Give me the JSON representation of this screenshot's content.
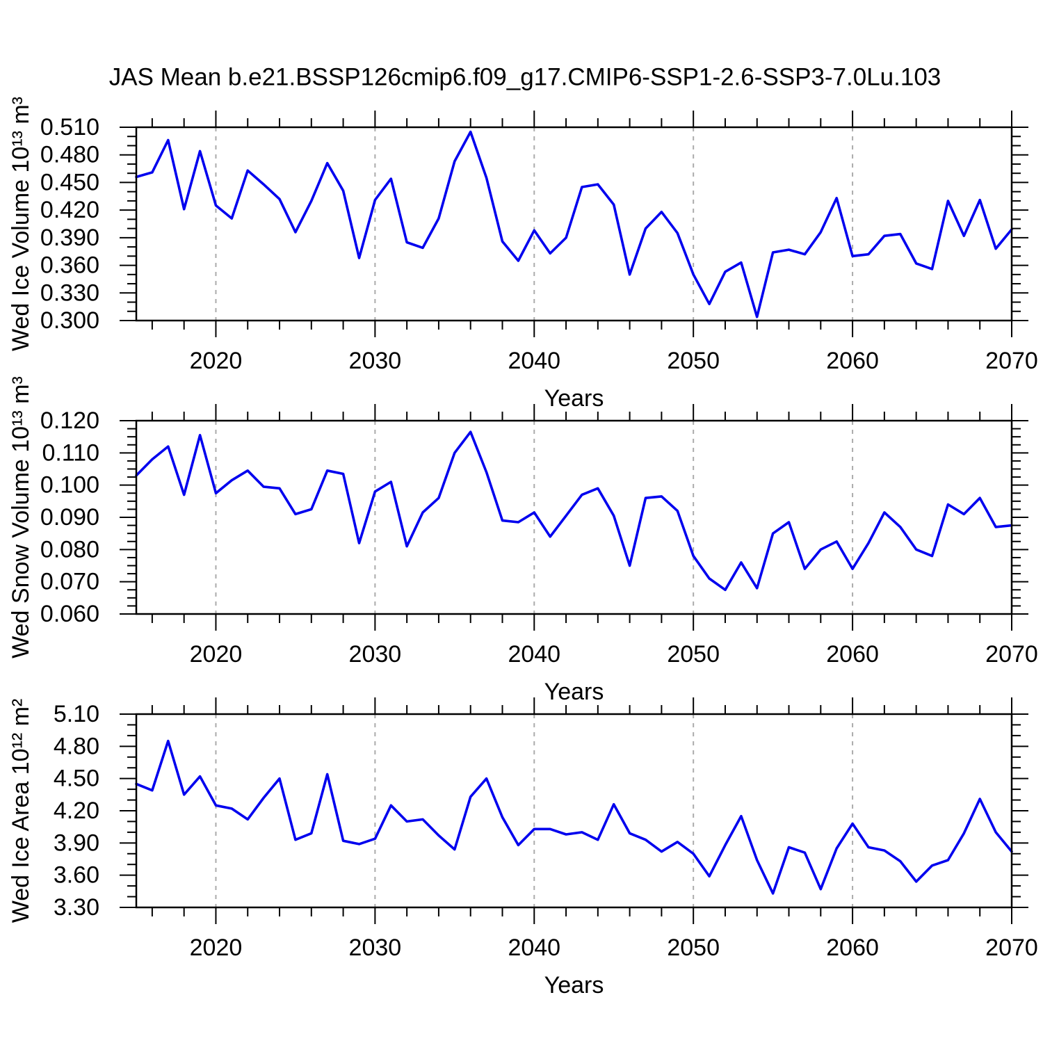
{
  "title": "JAS Mean b.e21.BSSP126cmip6.f09_g17.CMIP6-SSP1-2.6-SSP3-7.0Lu.103",
  "colors": {
    "line": "#0000EE",
    "grid": "#ABABAB",
    "axis": "#000000",
    "text": "#000000",
    "background": "#FFFFFF"
  },
  "chart_data": {
    "type": "line",
    "x_label": "Years",
    "xlim": [
      2015,
      2070
    ],
    "x_ticks": [
      2020,
      2030,
      2040,
      2050,
      2060,
      2070
    ],
    "x_minor_step": 2,
    "x_gridlines": [
      2020,
      2030,
      2040,
      2050,
      2060
    ],
    "grid_style": "dashed",
    "legend": "none",
    "years": [
      2015,
      2016,
      2017,
      2018,
      2019,
      2020,
      2021,
      2022,
      2023,
      2024,
      2025,
      2026,
      2027,
      2028,
      2029,
      2030,
      2031,
      2032,
      2033,
      2034,
      2035,
      2036,
      2037,
      2038,
      2039,
      2040,
      2041,
      2042,
      2043,
      2044,
      2045,
      2046,
      2047,
      2048,
      2049,
      2050,
      2051,
      2052,
      2053,
      2054,
      2055,
      2056,
      2057,
      2058,
      2059,
      2060,
      2061,
      2062,
      2063,
      2064,
      2065,
      2066,
      2067,
      2068,
      2069,
      2070
    ],
    "panels": [
      {
        "name": "wed-ice-volume",
        "ylabel": "Wed Ice Volume 10¹³ m³",
        "ylim": [
          0.3,
          0.51
        ],
        "ytick_step": 0.03,
        "yminor_step": 0.01,
        "ylabel_decimals": 3,
        "values": [
          0.456,
          0.461,
          0.496,
          0.421,
          0.484,
          0.425,
          0.411,
          0.463,
          0.448,
          0.432,
          0.396,
          0.43,
          0.471,
          0.441,
          0.368,
          0.431,
          0.454,
          0.385,
          0.379,
          0.411,
          0.473,
          0.505,
          0.455,
          0.386,
          0.365,
          0.398,
          0.373,
          0.39,
          0.445,
          0.448,
          0.426,
          0.35,
          0.4,
          0.418,
          0.395,
          0.35,
          0.318,
          0.353,
          0.363,
          0.304,
          0.374,
          0.377,
          0.372,
          0.396,
          0.433,
          0.37,
          0.372,
          0.392,
          0.394,
          0.362,
          0.356,
          0.43,
          0.392,
          0.431,
          0.378,
          0.399
        ]
      },
      {
        "name": "wed-snow-volume",
        "ylabel": "Wed Snow Volume 10¹³ m³",
        "ylim": [
          0.06,
          0.12
        ],
        "ytick_step": 0.01,
        "yminor_step": 0.0025,
        "ylabel_decimals": 3,
        "values": [
          0.103,
          0.108,
          0.112,
          0.097,
          0.1155,
          0.0975,
          0.1015,
          0.1045,
          0.0995,
          0.099,
          0.091,
          0.0925,
          0.1045,
          0.1035,
          0.082,
          0.098,
          0.101,
          0.081,
          0.0915,
          0.096,
          0.11,
          0.1165,
          0.104,
          0.089,
          0.0885,
          0.0915,
          0.084,
          0.0905,
          0.097,
          0.099,
          0.0905,
          0.075,
          0.096,
          0.0965,
          0.092,
          0.078,
          0.071,
          0.0675,
          0.076,
          0.068,
          0.085,
          0.0885,
          0.074,
          0.08,
          0.0825,
          0.074,
          0.082,
          0.0915,
          0.087,
          0.08,
          0.078,
          0.094,
          0.091,
          0.096,
          0.087,
          0.0875
        ]
      },
      {
        "name": "wed-ice-area",
        "ylabel": "Wed Ice Area 10¹² m²",
        "ylim": [
          3.3,
          5.1
        ],
        "ytick_step": 0.3,
        "yminor_step": 0.1,
        "ylabel_decimals": 2,
        "values": [
          4.45,
          4.39,
          4.85,
          4.35,
          4.52,
          4.25,
          4.22,
          4.12,
          4.32,
          4.5,
          3.93,
          3.99,
          4.54,
          3.92,
          3.89,
          3.94,
          4.25,
          4.1,
          4.12,
          3.97,
          3.84,
          4.33,
          4.5,
          4.14,
          3.88,
          4.03,
          4.03,
          3.98,
          4.0,
          3.93,
          4.26,
          3.99,
          3.93,
          3.82,
          3.91,
          3.8,
          3.59,
          3.88,
          4.15,
          3.74,
          3.43,
          3.86,
          3.81,
          3.47,
          3.85,
          4.08,
          3.86,
          3.83,
          3.73,
          3.54,
          3.69,
          3.74,
          3.99,
          4.31,
          4.0,
          3.82
        ]
      }
    ]
  }
}
